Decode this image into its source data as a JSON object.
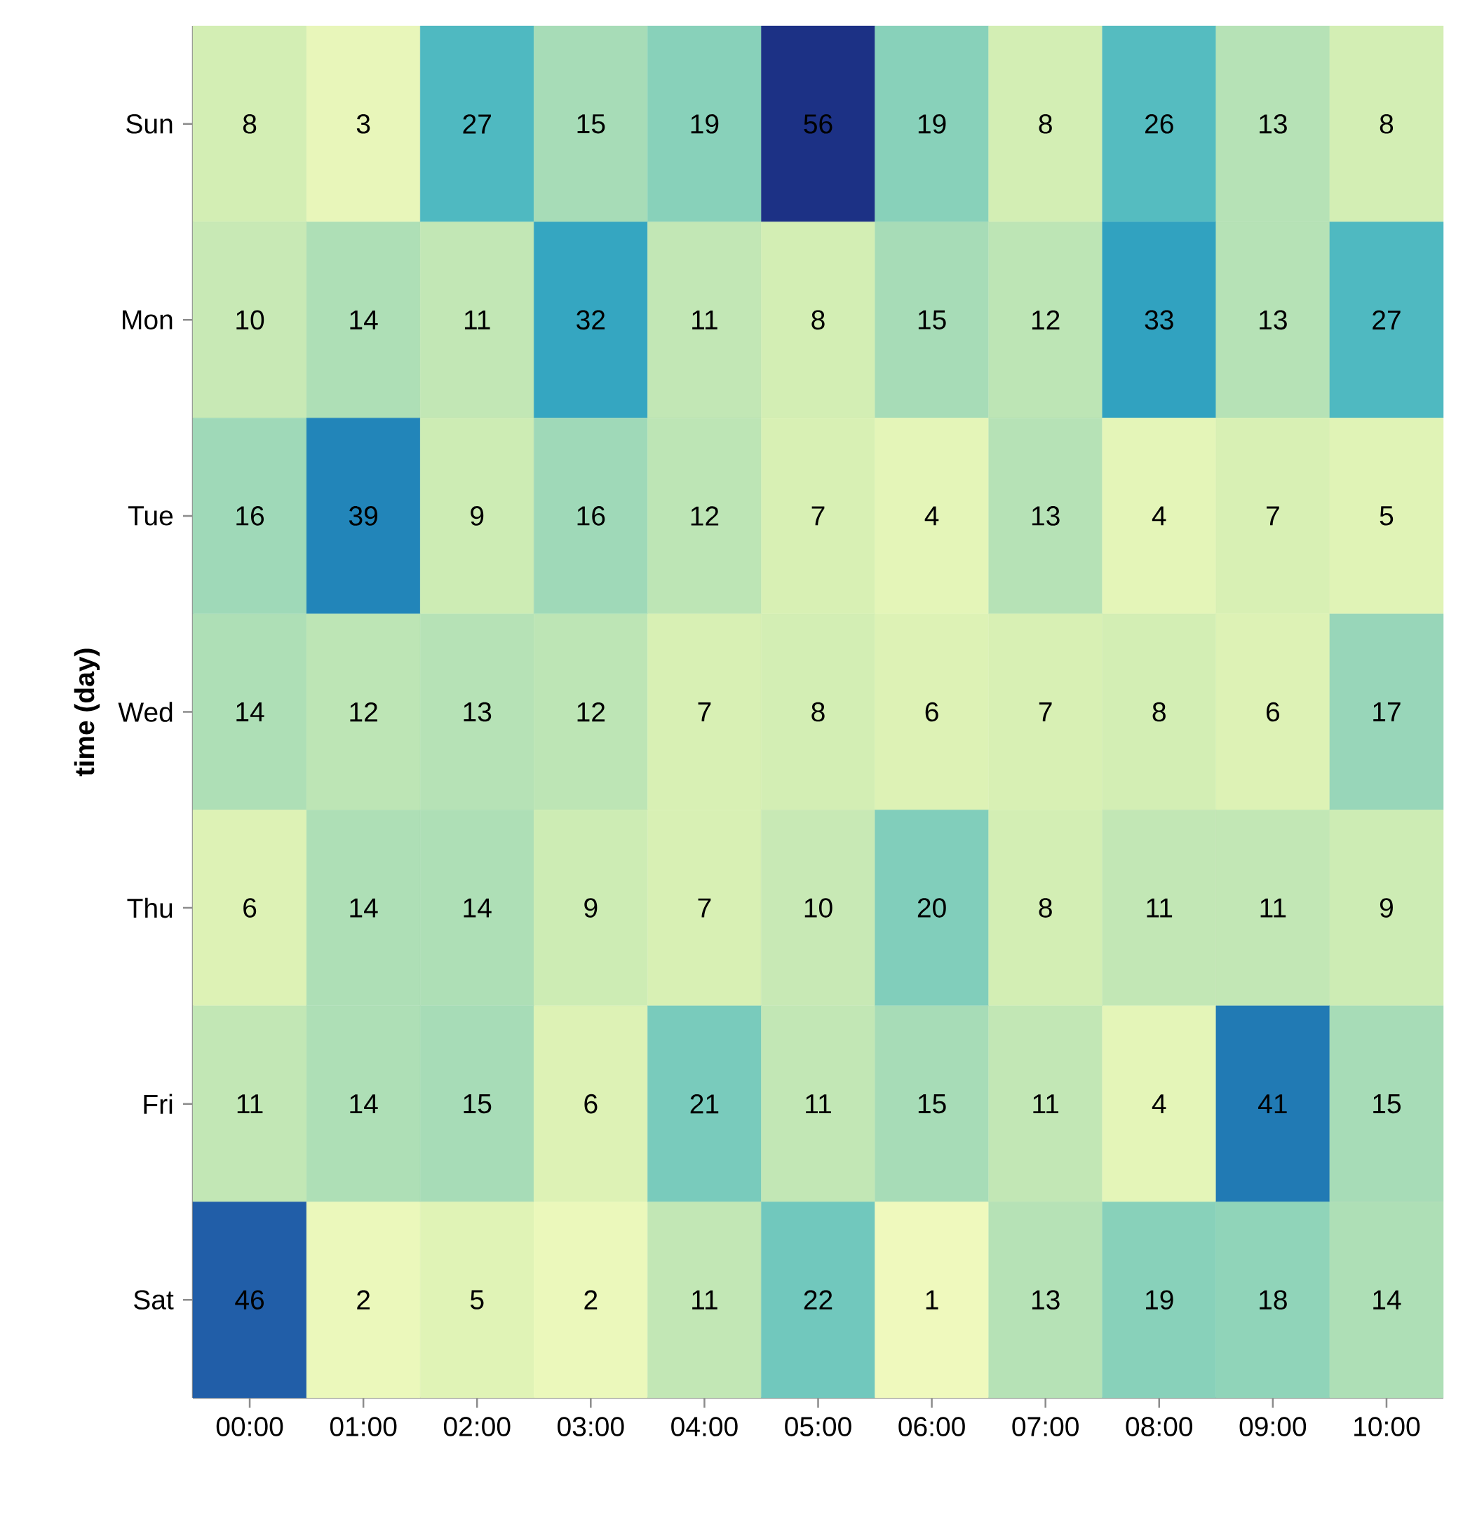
{
  "chart_data": {
    "type": "heatmap",
    "ylabel": "time (day)",
    "categories": [
      "00:00",
      "01:00",
      "02:00",
      "03:00",
      "04:00",
      "05:00",
      "06:00",
      "07:00",
      "08:00",
      "09:00",
      "10:00"
    ],
    "y_categories": [
      "Sun",
      "Mon",
      "Tue",
      "Wed",
      "Thu",
      "Fri",
      "Sat"
    ],
    "cells": [
      [
        8,
        3,
        27,
        15,
        19,
        56,
        19,
        8,
        26,
        13,
        8
      ],
      [
        10,
        14,
        11,
        32,
        11,
        8,
        15,
        12,
        33,
        13,
        27
      ],
      [
        16,
        39,
        9,
        16,
        12,
        7,
        4,
        13,
        4,
        7,
        5
      ],
      [
        14,
        12,
        13,
        12,
        7,
        8,
        6,
        7,
        8,
        6,
        17
      ],
      [
        6,
        14,
        14,
        9,
        7,
        10,
        20,
        8,
        11,
        11,
        9
      ],
      [
        11,
        14,
        15,
        6,
        21,
        11,
        15,
        11,
        4,
        41,
        15
      ],
      [
        46,
        2,
        5,
        2,
        11,
        22,
        1,
        13,
        19,
        18,
        14
      ]
    ],
    "data_labels": true
  }
}
